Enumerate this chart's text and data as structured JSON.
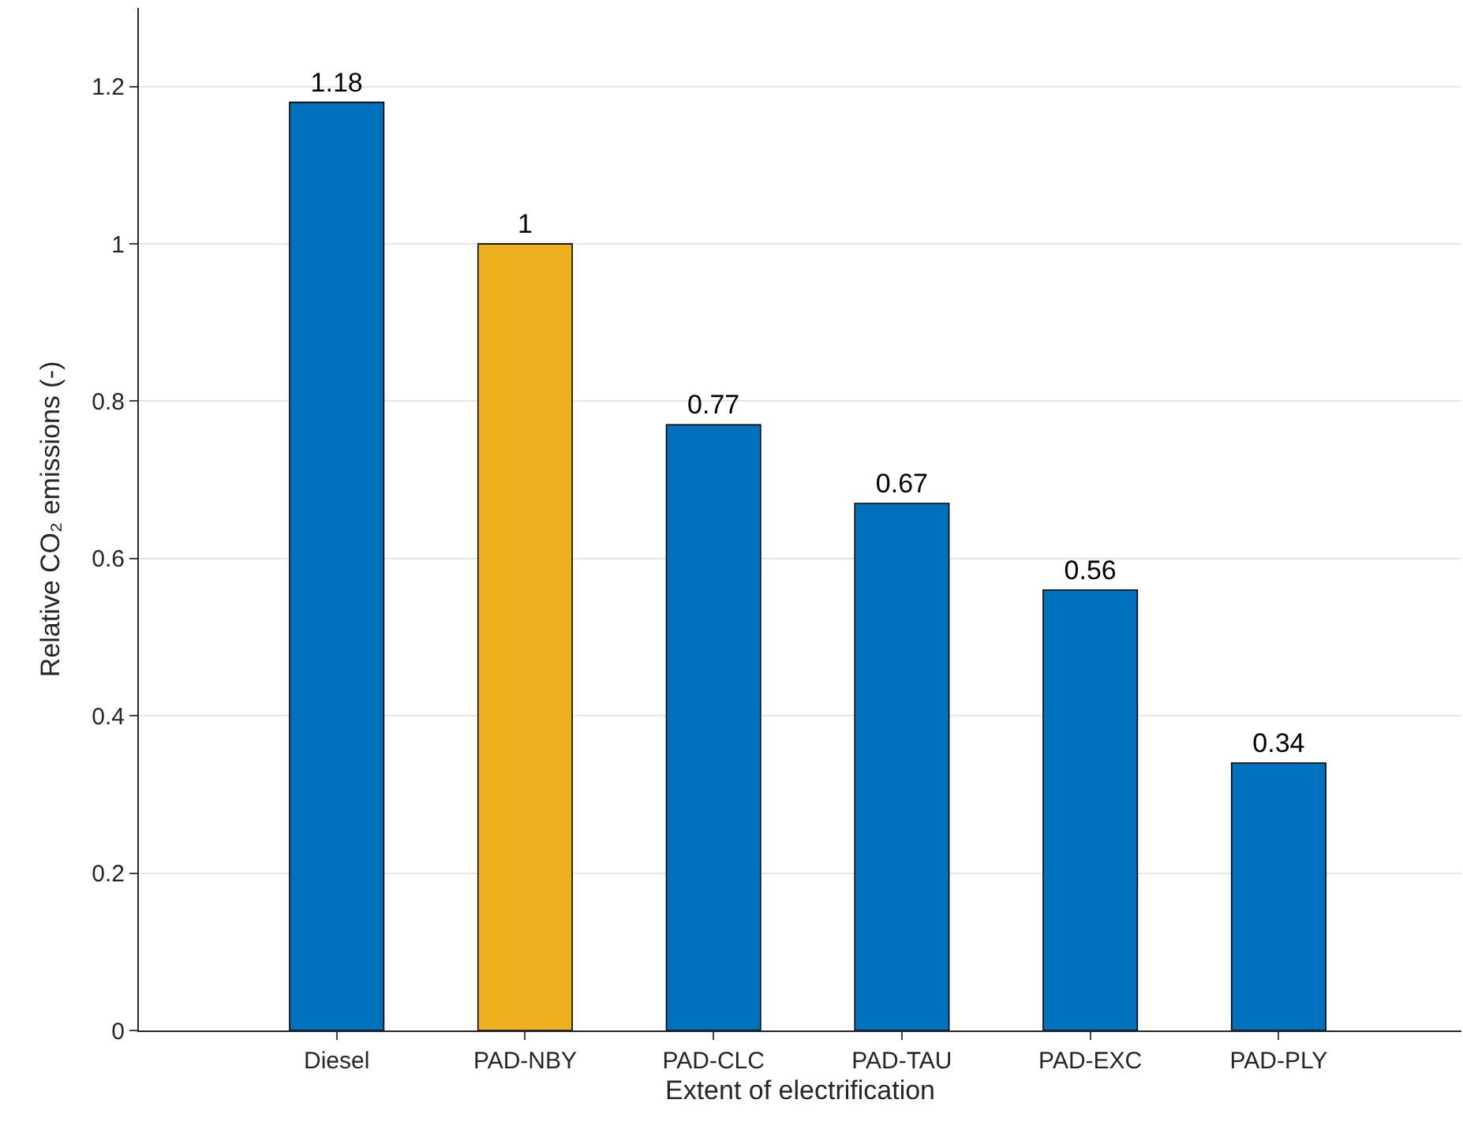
{
  "chart_data": {
    "type": "bar",
    "xlabel": "Extent of electrification",
    "ylabel": "Relative CO₂ emissions (-)",
    "categories": [
      "Diesel",
      "PAD-NBY",
      "PAD-CLC",
      "PAD-TAU",
      "PAD-EXC",
      "PAD-PLY"
    ],
    "values": [
      1.18,
      1,
      0.77,
      0.67,
      0.56,
      0.34
    ],
    "colors": [
      "#0072bd",
      "#edb120",
      "#0072bd",
      "#0072bd",
      "#0072bd",
      "#0072bd"
    ],
    "ylim": [
      0,
      1.3
    ],
    "yticks": [
      0,
      0.2,
      0.4,
      0.6,
      0.8,
      1,
      1.2
    ],
    "grid": "y",
    "data_labels": true
  }
}
